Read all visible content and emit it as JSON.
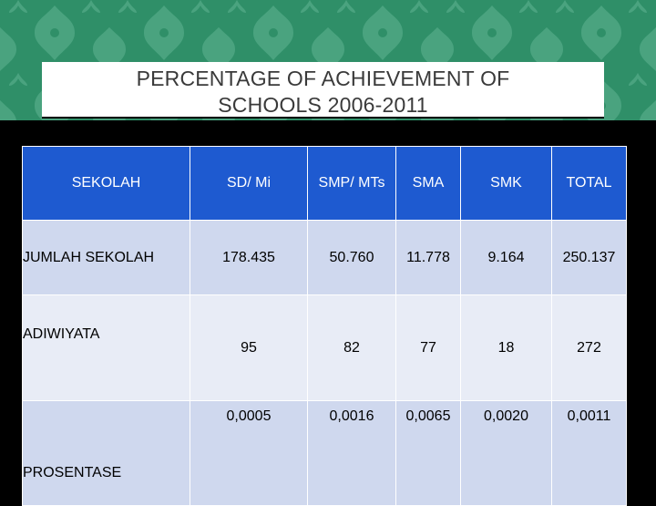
{
  "slide": {
    "title_line1": "PERCENTAGE OF ACHIEVEMENT OF",
    "title_line2": "SCHOOLS 2006-2011"
  },
  "colors": {
    "pattern_bg": "#2f8f68",
    "pattern_fg": "#4ea784",
    "header_bg": "#1e5ad0",
    "row_dark": "#cfd8ee",
    "row_light": "#e8ecf6"
  },
  "table": {
    "headers": [
      "SEKOLAH",
      "SD/ Mi",
      "SMP/ MTs",
      "SMA",
      "SMK",
      "TOTAL"
    ],
    "rows": [
      {
        "label": "JUMLAH SEKOLAH",
        "values": [
          "178.435",
          "50.760",
          "11.778",
          "9.164",
          "250.137"
        ]
      },
      {
        "label": "ADIWIYATA",
        "values": [
          "95",
          "82",
          "77",
          "18",
          "272"
        ]
      },
      {
        "label": "PROSENTASE",
        "values": [
          "0,0005",
          "0,0016",
          "0,0065",
          "0,0020",
          "0,0011"
        ]
      }
    ]
  }
}
